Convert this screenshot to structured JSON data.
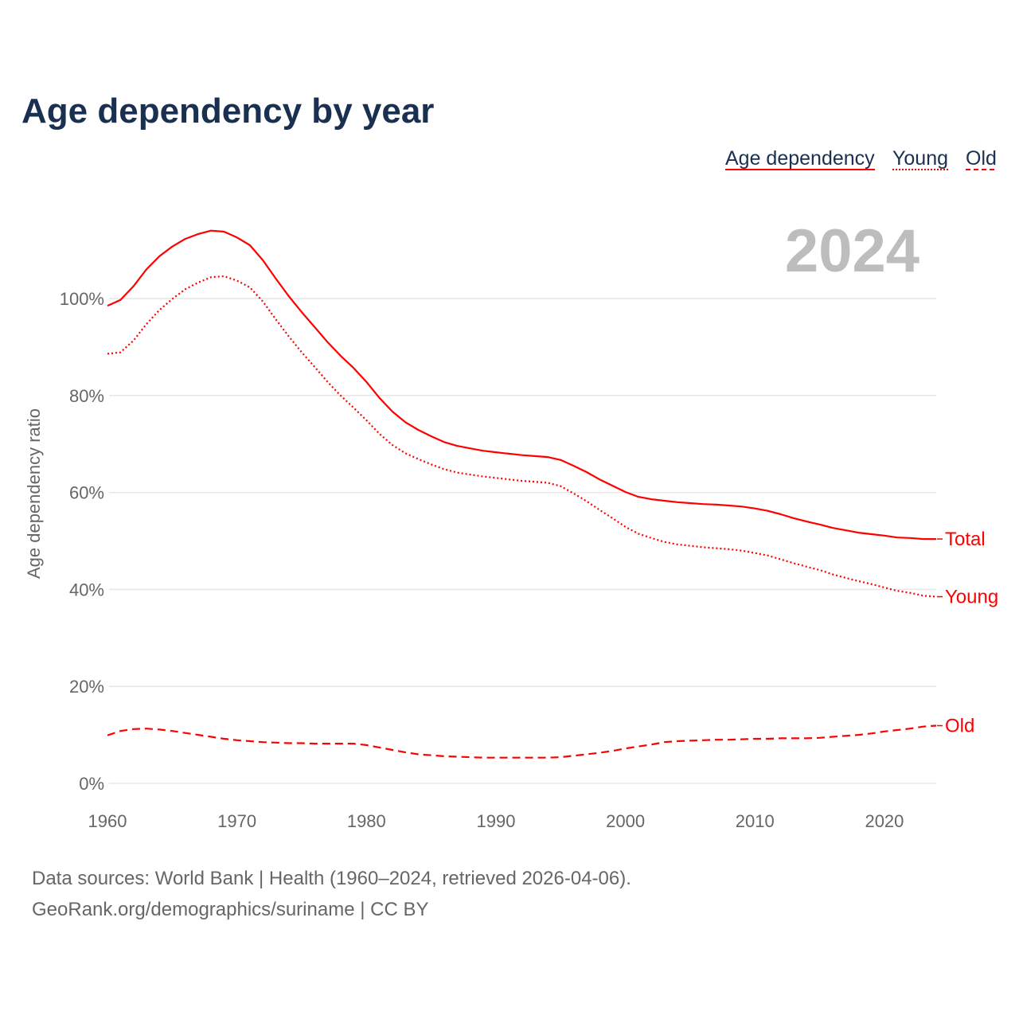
{
  "title": "Age dependency by year",
  "highlight_year": "2024",
  "legend": [
    "Age dependency",
    "Young",
    "Old"
  ],
  "footer": {
    "line1": "Data sources: World Bank | Health (1960–2024, retrieved 2026-04-06).",
    "line2": "GeoRank.org/demographics/suriname | CC BY"
  },
  "chart_data": {
    "type": "line",
    "title": "Age dependency by year",
    "xlabel": "",
    "ylabel": "Age dependency ratio",
    "xlim": [
      1960,
      2024
    ],
    "ylim": [
      0,
      120
    ],
    "x_ticks": [
      "1960",
      "1970",
      "1980",
      "1990",
      "2000",
      "2010",
      "2020"
    ],
    "y_ticks": [
      "0%",
      "20%",
      "40%",
      "60%",
      "80%",
      "100%"
    ],
    "grid": true,
    "legend_position": "top-right",
    "color": "#ff0000",
    "x_start": 1960,
    "series": [
      {
        "name": "Total",
        "legend": "Age dependency",
        "style": "solid",
        "values": [
          98.5,
          99.7,
          102.5,
          106,
          108.7,
          110.7,
          112.3,
          113.3,
          114,
          113.8,
          112.6,
          111,
          107.9,
          104.1,
          100.5,
          97.2,
          94.1,
          91,
          88.2,
          85.7,
          82.8,
          79.5,
          76.7,
          74.5,
          72.9,
          71.6,
          70.4,
          69.6,
          69.1,
          68.6,
          68.3,
          68,
          67.7,
          67.5,
          67.3,
          66.7,
          65.5,
          64.2,
          62.7,
          61.4,
          60.1,
          59.1,
          58.6,
          58.3,
          58,
          57.8,
          57.6,
          57.5,
          57.3,
          57.1,
          56.7,
          56.2,
          55.5,
          54.7,
          54,
          53.4,
          52.7,
          52.2,
          51.7,
          51.4,
          51.1,
          50.7,
          50.6,
          50.4,
          50.4
        ]
      },
      {
        "name": "Young",
        "legend": "Young",
        "style": "dotted",
        "values": [
          88.6,
          88.9,
          91.3,
          94.7,
          97.6,
          99.9,
          101.9,
          103.3,
          104.4,
          104.6,
          103.7,
          102.3,
          99.4,
          95.7,
          92.2,
          88.9,
          85.9,
          82.8,
          80.0,
          77.5,
          74.9,
          72.1,
          69.8,
          68.1,
          66.9,
          65.8,
          64.8,
          64.1,
          63.7,
          63.3,
          63.0,
          62.7,
          62.4,
          62.2,
          62.0,
          61.3,
          59.8,
          58.2,
          56.4,
          54.7,
          52.9,
          51.5,
          50.6,
          49.8,
          49.3,
          49.0,
          48.7,
          48.5,
          48.3,
          48.0,
          47.5,
          47.0,
          46.2,
          45.4,
          44.7,
          44.0,
          43.1,
          42.4,
          41.7,
          41.1,
          40.4,
          39.7,
          39.3,
          38.7,
          38.5
        ]
      },
      {
        "name": "Old",
        "legend": "Old",
        "style": "dashed",
        "values": [
          9.9,
          10.8,
          11.2,
          11.3,
          11.1,
          10.8,
          10.4,
          10.0,
          9.6,
          9.2,
          8.9,
          8.7,
          8.5,
          8.4,
          8.3,
          8.3,
          8.2,
          8.2,
          8.2,
          8.2,
          7.9,
          7.4,
          6.9,
          6.4,
          6.0,
          5.8,
          5.6,
          5.5,
          5.4,
          5.3,
          5.3,
          5.3,
          5.3,
          5.3,
          5.3,
          5.4,
          5.7,
          6.0,
          6.3,
          6.7,
          7.2,
          7.6,
          8.0,
          8.5,
          8.7,
          8.8,
          8.9,
          9.0,
          9.0,
          9.1,
          9.2,
          9.2,
          9.3,
          9.3,
          9.3,
          9.4,
          9.6,
          9.8,
          10.0,
          10.3,
          10.7,
          11.0,
          11.3,
          11.7,
          11.9
        ]
      }
    ]
  }
}
